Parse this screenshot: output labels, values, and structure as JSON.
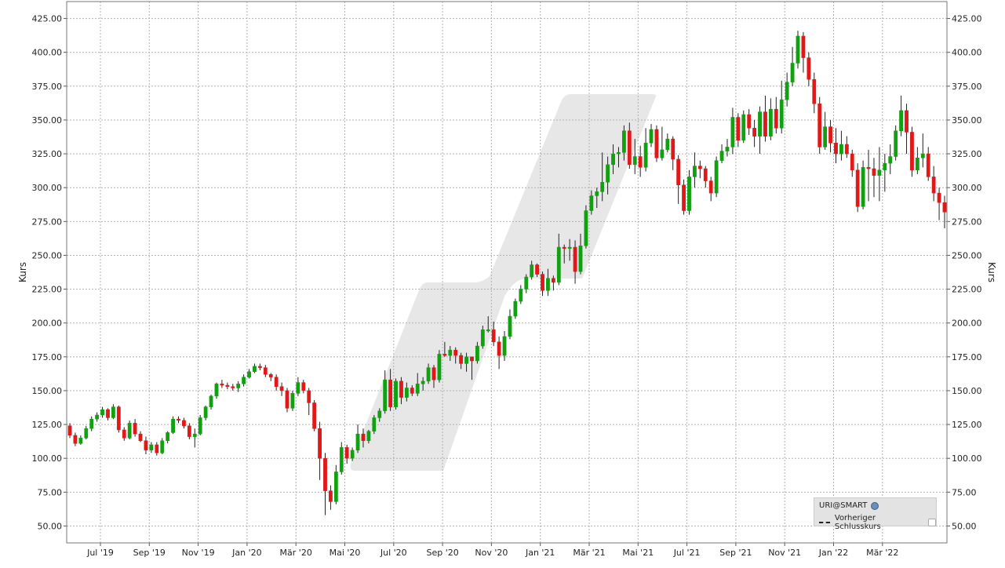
{
  "chart_data": {
    "type": "candlestick",
    "ylabel_left": "Kurs",
    "ylabel_right": "Kurs",
    "ylim": [
      37.5,
      437.5
    ],
    "y_ticks": [
      "50.00",
      "75.00",
      "100.00",
      "125.00",
      "150.00",
      "175.00",
      "200.00",
      "225.00",
      "250.00",
      "275.00",
      "300.00",
      "325.00",
      "350.00",
      "375.00",
      "400.00",
      "425.00"
    ],
    "x_ticks": [
      "Jul '19",
      "Sep '19",
      "Nov '19",
      "Jan '20",
      "Mär '20",
      "Mai '20",
      "Jul '20",
      "Sep '20",
      "Nov '20",
      "Jan '21",
      "Mär '21",
      "Mai '21",
      "Jul '21",
      "Sep '21",
      "Nov '21",
      "Jan '22",
      "Mär '22"
    ],
    "grid": true,
    "up_color": "#10a010",
    "down_color": "#e01818",
    "candles": [
      [
        124,
        117,
        126,
        115
      ],
      [
        117,
        111,
        119,
        109
      ],
      [
        111,
        115,
        117,
        110
      ],
      [
        115,
        122,
        124,
        114
      ],
      [
        122,
        129,
        131,
        120
      ],
      [
        129,
        132,
        134,
        127
      ],
      [
        132,
        136,
        138,
        130
      ],
      [
        136,
        130,
        137,
        128
      ],
      [
        130,
        138,
        140,
        129
      ],
      [
        138,
        121,
        139,
        119
      ],
      [
        121,
        115,
        123,
        113
      ],
      [
        115,
        126,
        128,
        114
      ],
      [
        126,
        118,
        129,
        116
      ],
      [
        118,
        113,
        120,
        112
      ],
      [
        113,
        106,
        116,
        103
      ],
      [
        106,
        110,
        112,
        104
      ],
      [
        110,
        104,
        112,
        102
      ],
      [
        104,
        113,
        115,
        103
      ],
      [
        113,
        119,
        120,
        111
      ],
      [
        119,
        129,
        131,
        118
      ],
      [
        129,
        128,
        131,
        126
      ],
      [
        128,
        124,
        130,
        122
      ],
      [
        124,
        116,
        126,
        114
      ],
      [
        116,
        118,
        122,
        108
      ],
      [
        118,
        130,
        132,
        117
      ],
      [
        130,
        138,
        139,
        128
      ],
      [
        138,
        146,
        147,
        136
      ],
      [
        146,
        155,
        156,
        144
      ],
      [
        155,
        154,
        158,
        152
      ],
      [
        154,
        153,
        156,
        151
      ],
      [
        153,
        152,
        155,
        150
      ],
      [
        152,
        155,
        157,
        149
      ],
      [
        155,
        160,
        162,
        153
      ],
      [
        160,
        164,
        166,
        159
      ],
      [
        164,
        168,
        170,
        163
      ],
      [
        168,
        167,
        170,
        165
      ],
      [
        167,
        162,
        169,
        160
      ],
      [
        162,
        160,
        163,
        157
      ],
      [
        160,
        153,
        162,
        150
      ],
      [
        153,
        150,
        156,
        146
      ],
      [
        150,
        137,
        152,
        134
      ],
      [
        137,
        148,
        150,
        135
      ],
      [
        148,
        156,
        160,
        146
      ],
      [
        156,
        150,
        158,
        148
      ],
      [
        150,
        141,
        152,
        132
      ],
      [
        141,
        122,
        143,
        120
      ],
      [
        122,
        100,
        127,
        84
      ],
      [
        100,
        76,
        104,
        58
      ],
      [
        76,
        68,
        80,
        62
      ],
      [
        68,
        90,
        95,
        66
      ],
      [
        90,
        108,
        112,
        88
      ],
      [
        108,
        100,
        110,
        96
      ],
      [
        100,
        106,
        108,
        98
      ],
      [
        106,
        118,
        125,
        104
      ],
      [
        118,
        113,
        122,
        108
      ],
      [
        113,
        120,
        121,
        111
      ],
      [
        120,
        130,
        132,
        118
      ],
      [
        130,
        135,
        137,
        127
      ],
      [
        135,
        158,
        165,
        133
      ],
      [
        158,
        138,
        166,
        135
      ],
      [
        138,
        157,
        159,
        136
      ],
      [
        157,
        145,
        160,
        140
      ],
      [
        145,
        152,
        156,
        142
      ],
      [
        152,
        148,
        154,
        146
      ],
      [
        148,
        155,
        163,
        146
      ],
      [
        155,
        157,
        160,
        150
      ],
      [
        157,
        167,
        170,
        155
      ],
      [
        167,
        158,
        169,
        152
      ],
      [
        158,
        177,
        180,
        156
      ],
      [
        177,
        176,
        186,
        175
      ],
      [
        176,
        180,
        183,
        172
      ],
      [
        180,
        176,
        182,
        170
      ],
      [
        176,
        170,
        178,
        166
      ],
      [
        170,
        175,
        178,
        164
      ],
      [
        175,
        172,
        174,
        158
      ],
      [
        172,
        183,
        186,
        170
      ],
      [
        183,
        195,
        198,
        181
      ],
      [
        195,
        195,
        205,
        193
      ],
      [
        195,
        186,
        201,
        183
      ],
      [
        186,
        176,
        190,
        166
      ],
      [
        176,
        190,
        194,
        172
      ],
      [
        190,
        205,
        210,
        188
      ],
      [
        205,
        216,
        218,
        203
      ],
      [
        216,
        225,
        228,
        214
      ],
      [
        225,
        234,
        236,
        222
      ],
      [
        234,
        243,
        246,
        232
      ],
      [
        243,
        236,
        244,
        234
      ],
      [
        236,
        224,
        238,
        220
      ],
      [
        224,
        233,
        240,
        220
      ],
      [
        233,
        230,
        235,
        224
      ],
      [
        230,
        256,
        266,
        228
      ],
      [
        256,
        255,
        258,
        244
      ],
      [
        255,
        256,
        262,
        246
      ],
      [
        256,
        238,
        261,
        229
      ],
      [
        238,
        257,
        266,
        236
      ],
      [
        257,
        283,
        287,
        255
      ],
      [
        283,
        294,
        298,
        280
      ],
      [
        294,
        297,
        300,
        285
      ],
      [
        297,
        304,
        326,
        290
      ],
      [
        304,
        317,
        323,
        295
      ],
      [
        317,
        325,
        332,
        310
      ],
      [
        325,
        326,
        330,
        315
      ],
      [
        326,
        342,
        346,
        320
      ],
      [
        342,
        317,
        348,
        314
      ],
      [
        317,
        323,
        336,
        310
      ],
      [
        323,
        315,
        331,
        308
      ],
      [
        315,
        333,
        344,
        312
      ],
      [
        333,
        343,
        347,
        330
      ],
      [
        343,
        322,
        346,
        319
      ],
      [
        322,
        328,
        345,
        320
      ],
      [
        328,
        336,
        340,
        326
      ],
      [
        336,
        321,
        338,
        313
      ],
      [
        321,
        302,
        324,
        288
      ],
      [
        302,
        283,
        306,
        280
      ],
      [
        283,
        308,
        313,
        280
      ],
      [
        308,
        316,
        326,
        300
      ],
      [
        316,
        314,
        320,
        307
      ],
      [
        314,
        305,
        316,
        300
      ],
      [
        305,
        296,
        308,
        290
      ],
      [
        296,
        320,
        323,
        293
      ],
      [
        320,
        327,
        332,
        318
      ],
      [
        327,
        330,
        336,
        323
      ],
      [
        330,
        352,
        359,
        325
      ],
      [
        352,
        335,
        355,
        330
      ],
      [
        335,
        354,
        357,
        333
      ],
      [
        354,
        344,
        358,
        339
      ],
      [
        344,
        338,
        350,
        330
      ],
      [
        338,
        356,
        360,
        325
      ],
      [
        356,
        338,
        368,
        334
      ],
      [
        338,
        358,
        366,
        335
      ],
      [
        358,
        344,
        367,
        340
      ],
      [
        344,
        365,
        379,
        340
      ],
      [
        365,
        378,
        385,
        360
      ],
      [
        378,
        392,
        404,
        375
      ],
      [
        392,
        412,
        416,
        388
      ],
      [
        412,
        396,
        415,
        385
      ],
      [
        396,
        380,
        400,
        375
      ],
      [
        380,
        362,
        385,
        355
      ],
      [
        362,
        330,
        367,
        325
      ],
      [
        330,
        345,
        356,
        328
      ],
      [
        345,
        333,
        350,
        326
      ],
      [
        333,
        325,
        344,
        318
      ],
      [
        325,
        332,
        342,
        320
      ],
      [
        332,
        325,
        338,
        322
      ],
      [
        325,
        313,
        328,
        308
      ],
      [
        313,
        286,
        318,
        282
      ],
      [
        286,
        315,
        320,
        284
      ],
      [
        315,
        314,
        328,
        290
      ],
      [
        314,
        309,
        322,
        293
      ],
      [
        309,
        313,
        330,
        290
      ],
      [
        313,
        318,
        325,
        297
      ],
      [
        318,
        323,
        332,
        310
      ],
      [
        323,
        342,
        346,
        320
      ],
      [
        342,
        357,
        368,
        338
      ],
      [
        357,
        341,
        362,
        325
      ],
      [
        341,
        313,
        345,
        308
      ],
      [
        313,
        322,
        330,
        310
      ],
      [
        322,
        325,
        340,
        315
      ],
      [
        325,
        308,
        330,
        305
      ],
      [
        308,
        296,
        316,
        290
      ],
      [
        296,
        289,
        300,
        276
      ],
      [
        289,
        282,
        294,
        270
      ]
    ],
    "legend": {
      "instrument": "URI@SMART",
      "prev_close_label": "Vorheriger Schlusskurs"
    }
  }
}
